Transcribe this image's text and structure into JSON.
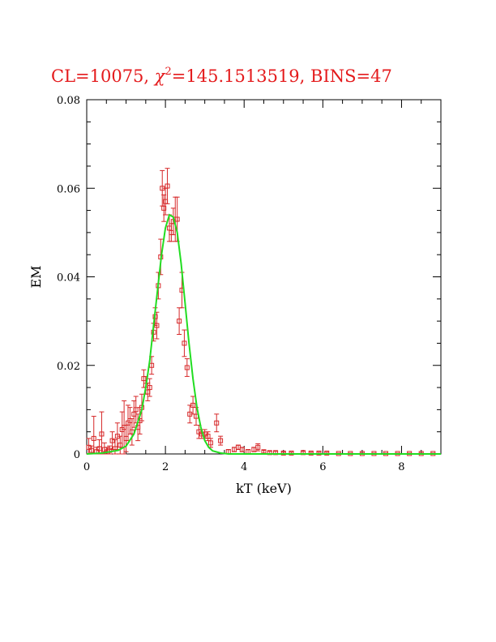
{
  "chart_data": {
    "type": "scatter",
    "title_main": "CL=10075, ",
    "title_chi": "χ",
    "title_sup": "2",
    "title_rest": "=145.1513519, BINS=47",
    "xlabel": "kT (keV)",
    "ylabel": "EM",
    "xlim": [
      0,
      9
    ],
    "ylim": [
      0,
      0.08
    ],
    "xticks": [
      0,
      2,
      4,
      6,
      8
    ],
    "xtick_labels": [
      "0",
      "2",
      "4",
      "6",
      "8"
    ],
    "yticks": [
      0,
      0.02,
      0.04,
      0.06,
      0.08
    ],
    "ytick_labels": [
      "0",
      "0.02",
      "0.04",
      "0.06",
      "0.08"
    ],
    "grid": false,
    "colors": {
      "data": "#d62728",
      "fit": "#22dd22",
      "title": "#e41a1c"
    },
    "series": [
      {
        "kind": "errorbar",
        "points": [
          {
            "x": 0.05,
            "y": 0.0015,
            "e": 0.002
          },
          {
            "x": 0.12,
            "y": 0.0008,
            "e": 0.001
          },
          {
            "x": 0.18,
            "y": 0.0035,
            "e": 0.005
          },
          {
            "x": 0.25,
            "y": 0.0005,
            "e": 0.001
          },
          {
            "x": 0.32,
            "y": 0.0012,
            "e": 0.002
          },
          {
            "x": 0.38,
            "y": 0.0045,
            "e": 0.005
          },
          {
            "x": 0.45,
            "y": 0.001,
            "e": 0.0015
          },
          {
            "x": 0.52,
            "y": 0.0005,
            "e": 0.001
          },
          {
            "x": 0.58,
            "y": 0.0008,
            "e": 0.001
          },
          {
            "x": 0.65,
            "y": 0.003,
            "e": 0.002
          },
          {
            "x": 0.72,
            "y": 0.0012,
            "e": 0.002
          },
          {
            "x": 0.78,
            "y": 0.004,
            "e": 0.003
          },
          {
            "x": 0.85,
            "y": 0.002,
            "e": 0.002
          },
          {
            "x": 0.9,
            "y": 0.0055,
            "e": 0.004
          },
          {
            "x": 0.95,
            "y": 0.006,
            "e": 0.006
          },
          {
            "x": 1.0,
            "y": 0.0035,
            "e": 0.003
          },
          {
            "x": 1.05,
            "y": 0.007,
            "e": 0.004
          },
          {
            "x": 1.1,
            "y": 0.0075,
            "e": 0.003
          },
          {
            "x": 1.15,
            "y": 0.005,
            "e": 0.003
          },
          {
            "x": 1.2,
            "y": 0.009,
            "e": 0.003
          },
          {
            "x": 1.25,
            "y": 0.01,
            "e": 0.003
          },
          {
            "x": 1.3,
            "y": 0.006,
            "e": 0.003
          },
          {
            "x": 1.35,
            "y": 0.0075,
            "e": 0.003
          },
          {
            "x": 1.4,
            "y": 0.0105,
            "e": 0.003
          },
          {
            "x": 1.45,
            "y": 0.017,
            "e": 0.002
          },
          {
            "x": 1.5,
            "y": 0.0155,
            "e": 0.002
          },
          {
            "x": 1.55,
            "y": 0.014,
            "e": 0.002
          },
          {
            "x": 1.6,
            "y": 0.015,
            "e": 0.002
          },
          {
            "x": 1.65,
            "y": 0.02,
            "e": 0.002
          },
          {
            "x": 1.7,
            "y": 0.0275,
            "e": 0.002
          },
          {
            "x": 1.74,
            "y": 0.031,
            "e": 0.002
          },
          {
            "x": 1.78,
            "y": 0.029,
            "e": 0.003
          },
          {
            "x": 1.82,
            "y": 0.038,
            "e": 0.003
          },
          {
            "x": 1.88,
            "y": 0.0445,
            "e": 0.004
          },
          {
            "x": 1.92,
            "y": 0.06,
            "e": 0.004
          },
          {
            "x": 1.96,
            "y": 0.0555,
            "e": 0.003
          },
          {
            "x": 2.0,
            "y": 0.057,
            "e": 0.003
          },
          {
            "x": 2.05,
            "y": 0.0605,
            "e": 0.004
          },
          {
            "x": 2.1,
            "y": 0.051,
            "e": 0.003
          },
          {
            "x": 2.15,
            "y": 0.05,
            "e": 0.002
          },
          {
            "x": 2.2,
            "y": 0.0525,
            "e": 0.003
          },
          {
            "x": 2.25,
            "y": 0.053,
            "e": 0.005
          },
          {
            "x": 2.3,
            "y": 0.053,
            "e": 0.005
          },
          {
            "x": 2.35,
            "y": 0.03,
            "e": 0.003
          },
          {
            "x": 2.42,
            "y": 0.037,
            "e": 0.004
          },
          {
            "x": 2.48,
            "y": 0.025,
            "e": 0.003
          },
          {
            "x": 2.55,
            "y": 0.0195,
            "e": 0.002
          },
          {
            "x": 2.62,
            "y": 0.009,
            "e": 0.002
          },
          {
            "x": 2.7,
            "y": 0.011,
            "e": 0.002
          },
          {
            "x": 2.78,
            "y": 0.0085,
            "e": 0.002
          },
          {
            "x": 2.85,
            "y": 0.005,
            "e": 0.0015
          },
          {
            "x": 2.92,
            "y": 0.0045,
            "e": 0.001
          },
          {
            "x": 3.0,
            "y": 0.0045,
            "e": 0.001
          },
          {
            "x": 3.08,
            "y": 0.004,
            "e": 0.001
          },
          {
            "x": 3.15,
            "y": 0.0025,
            "e": 0.001
          },
          {
            "x": 3.3,
            "y": 0.007,
            "e": 0.002
          },
          {
            "x": 3.4,
            "y": 0.003,
            "e": 0.001
          },
          {
            "x": 3.6,
            "y": 0.0005,
            "e": 0.0005
          },
          {
            "x": 3.75,
            "y": 0.001,
            "e": 0.0005
          },
          {
            "x": 3.85,
            "y": 0.0015,
            "e": 0.0005
          },
          {
            "x": 3.95,
            "y": 0.001,
            "e": 0.0005
          },
          {
            "x": 4.1,
            "y": 0.0005,
            "e": 0.0005
          },
          {
            "x": 4.25,
            "y": 0.001,
            "e": 0.0005
          },
          {
            "x": 4.35,
            "y": 0.0015,
            "e": 0.0008
          },
          {
            "x": 4.5,
            "y": 0.0005,
            "e": 0.0003
          },
          {
            "x": 4.65,
            "y": 0.0003,
            "e": 0.0003
          },
          {
            "x": 4.8,
            "y": 0.0003,
            "e": 0.0003
          },
          {
            "x": 5.0,
            "y": 0.0002,
            "e": 0.0002
          },
          {
            "x": 5.2,
            "y": 0.0002,
            "e": 0.0002
          },
          {
            "x": 5.5,
            "y": 0.0003,
            "e": 0.0003
          },
          {
            "x": 5.7,
            "y": 0.0002,
            "e": 0.0002
          },
          {
            "x": 5.9,
            "y": 0.0002,
            "e": 0.0002
          },
          {
            "x": 6.1,
            "y": 0.0002,
            "e": 0.0002
          },
          {
            "x": 6.4,
            "y": 0.0001,
            "e": 0.0001
          },
          {
            "x": 6.7,
            "y": 0.0001,
            "e": 0.0001
          },
          {
            "x": 7.0,
            "y": 0.0001,
            "e": 0.0001
          },
          {
            "x": 7.3,
            "y": 0.0001,
            "e": 0.0001
          },
          {
            "x": 7.6,
            "y": 0.0001,
            "e": 0.0001
          },
          {
            "x": 7.9,
            "y": 0.0001,
            "e": 0.0001
          },
          {
            "x": 8.2,
            "y": 0.0001,
            "e": 0.0001
          },
          {
            "x": 8.5,
            "y": 0.0001,
            "e": 0.0001
          },
          {
            "x": 8.8,
            "y": 0.0001,
            "e": 0.0001
          }
        ]
      },
      {
        "kind": "fit-curve",
        "x": [
          0,
          0.4,
          0.8,
          1.0,
          1.2,
          1.4,
          1.5,
          1.6,
          1.7,
          1.8,
          1.9,
          2.0,
          2.1,
          2.2,
          2.3,
          2.4,
          2.5,
          2.6,
          2.7,
          2.8,
          2.9,
          3.0,
          3.1,
          3.2,
          3.4,
          3.6,
          4.0,
          5.0,
          9.0
        ],
        "y": [
          0,
          0.0002,
          0.0008,
          0.0018,
          0.0045,
          0.01,
          0.015,
          0.021,
          0.029,
          0.037,
          0.045,
          0.051,
          0.054,
          0.0535,
          0.05,
          0.043,
          0.034,
          0.025,
          0.017,
          0.0105,
          0.006,
          0.003,
          0.0015,
          0.0007,
          0.0002,
          0,
          0,
          0,
          0
        ]
      }
    ]
  }
}
